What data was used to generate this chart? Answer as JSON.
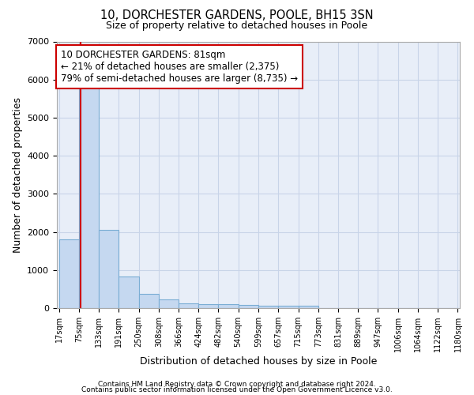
{
  "title1": "10, DORCHESTER GARDENS, POOLE, BH15 3SN",
  "title2": "Size of property relative to detached houses in Poole",
  "xlabel": "Distribution of detached houses by size in Poole",
  "ylabel": "Number of detached properties",
  "bin_labels": [
    "17sqm",
    "75sqm",
    "133sqm",
    "191sqm",
    "250sqm",
    "308sqm",
    "366sqm",
    "424sqm",
    "482sqm",
    "540sqm",
    "599sqm",
    "657sqm",
    "715sqm",
    "773sqm",
    "831sqm",
    "889sqm",
    "947sqm",
    "1006sqm",
    "1064sqm",
    "1122sqm",
    "1180sqm"
  ],
  "bin_edges": [
    17,
    75,
    133,
    191,
    250,
    308,
    366,
    424,
    482,
    540,
    599,
    657,
    715,
    773,
    831,
    889,
    947,
    1006,
    1064,
    1122,
    1180
  ],
  "bar_heights": [
    1800,
    5800,
    2050,
    820,
    370,
    230,
    120,
    110,
    100,
    90,
    70,
    70,
    70,
    0,
    0,
    0,
    0,
    0,
    0,
    0
  ],
  "bar_color": "#c5d8f0",
  "bar_edge_color": "#7aadd4",
  "property_size": 81,
  "annotation_line1": "10 DORCHESTER GARDENS: 81sqm",
  "annotation_line2": "← 21% of detached houses are smaller (2,375)",
  "annotation_line3": "79% of semi-detached houses are larger (8,735) →",
  "vline_color": "#cc0000",
  "annotation_box_edge": "#cc0000",
  "ylim": [
    0,
    7000
  ],
  "grid_color": "#c8d4e8",
  "background_color": "#e8eef8",
  "footer1": "Contains HM Land Registry data © Crown copyright and database right 2024.",
  "footer2": "Contains public sector information licensed under the Open Government Licence v3.0."
}
